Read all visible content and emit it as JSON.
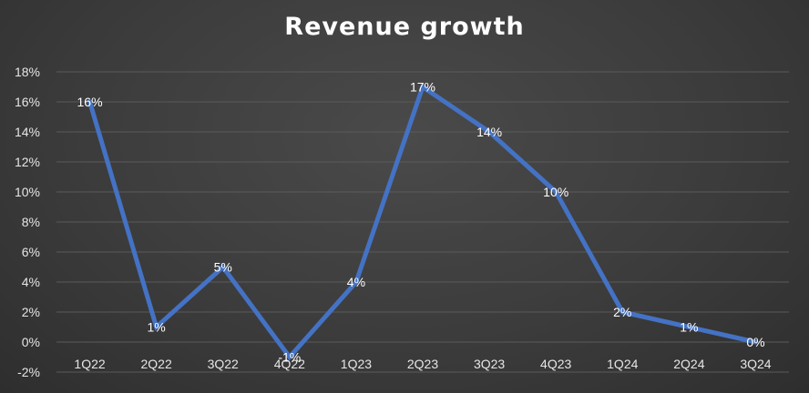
{
  "chart_data": {
    "type": "line",
    "title": "Revenue growth",
    "xlabel": "",
    "ylabel": "",
    "categories": [
      "1Q22",
      "2Q22",
      "3Q22",
      "4Q22",
      "1Q23",
      "2Q23",
      "3Q23",
      "4Q23",
      "1Q24",
      "2Q24",
      "3Q24"
    ],
    "series": [
      {
        "values": [
          16,
          1,
          5,
          -1,
          4,
          17,
          14,
          10,
          2,
          1,
          0
        ],
        "data_labels": [
          "16%",
          "1%",
          "5%",
          "-1%",
          "4%",
          "17%",
          "14%",
          "10%",
          "2%",
          "1%",
          "0%"
        ]
      }
    ],
    "ylim": [
      -2,
      18
    ],
    "yticks": [
      18,
      16,
      14,
      12,
      10,
      8,
      6,
      4,
      2,
      0,
      -2
    ],
    "ytick_labels": [
      "18%",
      "16%",
      "14%",
      "12%",
      "10%",
      "8%",
      "6%",
      "4%",
      "2%",
      "0%",
      "-2%"
    ],
    "grid": true,
    "legend": "none",
    "line_color": "#4472c4",
    "grid_color": "#5a5a5a",
    "background_color": "#3c3c3c"
  }
}
